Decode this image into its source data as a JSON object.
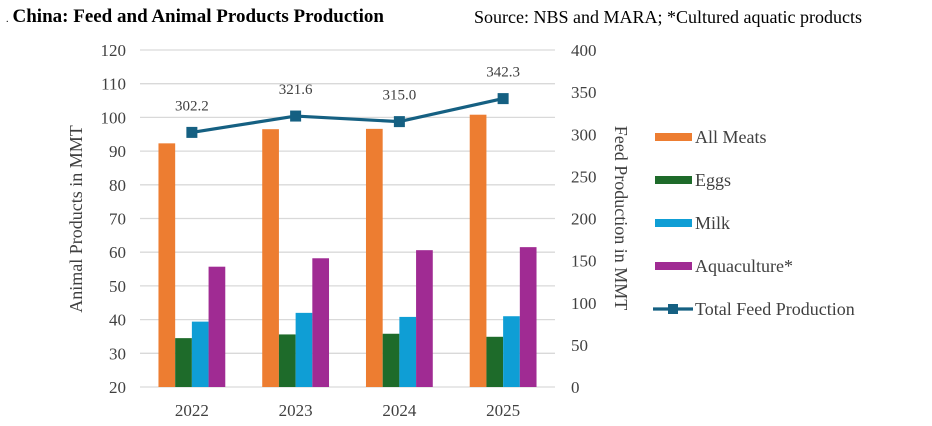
{
  "header": {
    "title": "China: Feed and Animal Products Production",
    "source": "Source: NBS and MARA; *Cultured aquatic products"
  },
  "chart_data": {
    "type": "bar",
    "title": "China: Feed and Animal Products Production",
    "subtitle": "Source: NBS and MARA; *Cultured aquatic products",
    "categories": [
      "2022",
      "2023",
      "2024",
      "2025"
    ],
    "ylabel": "Animal Products in MMT",
    "y2label": "Feed Production in MMT",
    "ylim": [
      20,
      120
    ],
    "y2lim": [
      0,
      400
    ],
    "yticks": [
      20,
      30,
      40,
      50,
      60,
      70,
      80,
      90,
      100,
      110,
      120
    ],
    "y2ticks": [
      0,
      50,
      100,
      150,
      200,
      250,
      300,
      350,
      400
    ],
    "grid": true,
    "legend_position": "right",
    "series": [
      {
        "name": "All Meats",
        "type": "bar",
        "axis": "left",
        "color": "#ED7D31",
        "values": [
          92.3,
          96.5,
          96.6,
          100.8
        ]
      },
      {
        "name": "Eggs",
        "type": "bar",
        "axis": "left",
        "color": "#1E6B2A",
        "values": [
          34.5,
          35.6,
          35.8,
          34.9
        ]
      },
      {
        "name": "Milk",
        "type": "bar",
        "axis": "left",
        "color": "#0F9ED5",
        "values": [
          39.4,
          42.0,
          40.8,
          41.0
        ]
      },
      {
        "name": "Aquaculture*",
        "type": "bar",
        "axis": "left",
        "color": "#A02B93",
        "values": [
          55.7,
          58.2,
          60.6,
          61.5
        ]
      },
      {
        "name": "Total Feed Production",
        "type": "line",
        "axis": "right",
        "color": "#156082",
        "values": [
          302.2,
          321.6,
          315.0,
          342.3
        ],
        "labels": [
          "302.2",
          "321.6",
          "315.0",
          "342.3"
        ]
      }
    ]
  }
}
